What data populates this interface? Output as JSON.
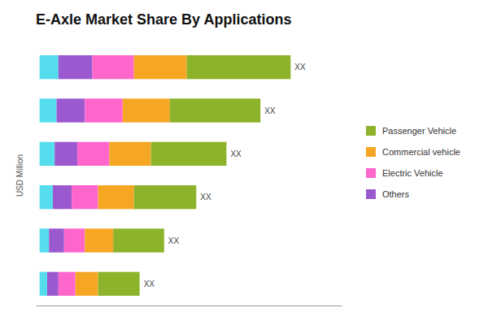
{
  "chart_data": {
    "type": "bar",
    "orientation": "horizontal",
    "stacked": true,
    "title": "E-Axle Market Share By Applications",
    "ylabel": "USD Million",
    "categories": [
      null,
      null,
      null,
      null,
      null,
      null
    ],
    "series": [
      {
        "color": "#55DDEE",
        "values": [
          1.0,
          0.9,
          0.8,
          0.7,
          0.5,
          0.4
        ]
      },
      {
        "name": "Others",
        "color": "#9B59D0",
        "values": [
          1.8,
          1.5,
          1.2,
          1.0,
          0.8,
          0.6
        ]
      },
      {
        "name": "Electric Vehicle",
        "color": "#FF66CC",
        "values": [
          2.2,
          2.0,
          1.7,
          1.4,
          1.1,
          0.9
        ]
      },
      {
        "name": "Commercial vehicle",
        "color": "#F5A623",
        "values": [
          2.8,
          2.5,
          2.2,
          1.9,
          1.5,
          1.2
        ]
      },
      {
        "name": "Passenger Vehicle",
        "color": "#8DB32A",
        "values": [
          5.5,
          4.8,
          4.0,
          3.3,
          2.7,
          2.2
        ]
      }
    ],
    "annotations": [
      "XX",
      "XX",
      "XX",
      "XX",
      "XX",
      "XX"
    ],
    "xlim": [
      -0.2,
      16
    ],
    "xticks": [],
    "grid": false,
    "tick_labels": false,
    "legend": "right"
  }
}
